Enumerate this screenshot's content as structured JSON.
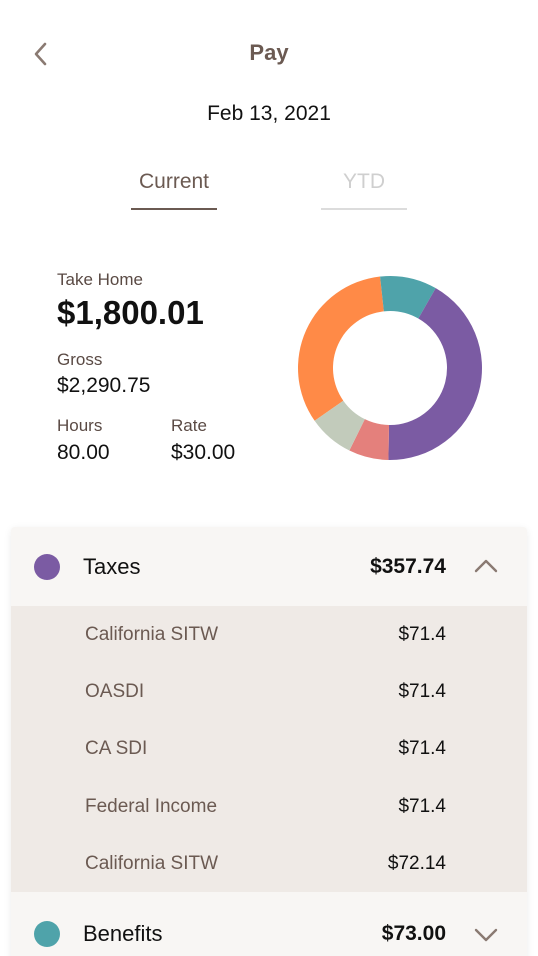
{
  "header": {
    "title": "Pay",
    "back_icon": "chevron-left-icon"
  },
  "pay_date": "Feb 13, 2021",
  "tabs": [
    {
      "label": "Current",
      "active": true
    },
    {
      "label": "YTD",
      "active": false
    }
  ],
  "summary": {
    "take_home_label": "Take Home",
    "take_home_value": "$1,800.01",
    "gross_label": "Gross",
    "gross_value": "$2,290.75",
    "hours_label": "Hours",
    "hours_value": "80.00",
    "rate_label": "Rate",
    "rate_value": "$30.00"
  },
  "chart_data": {
    "type": "pie",
    "slices": [
      {
        "color": "#ff8a47",
        "value": 33
      },
      {
        "color": "#4fa3aa",
        "value": 10
      },
      {
        "color": "#7b5ba3",
        "value": 42
      },
      {
        "color": "#e4807c",
        "value": 7
      },
      {
        "color": "#c2cbbb",
        "value": 8
      }
    ]
  },
  "breakdown": {
    "taxes": {
      "name": "Taxes",
      "amount": "$357.74",
      "color": "#7b5ba3",
      "expanded": true,
      "items": [
        {
          "name": "California SITW",
          "amount": "$71.4"
        },
        {
          "name": "OASDI",
          "amount": "$71.4"
        },
        {
          "name": "CA SDI",
          "amount": "$71.4"
        },
        {
          "name": "Federal Income",
          "amount": "$71.4"
        },
        {
          "name": "California SITW",
          "amount": "$72.14"
        }
      ]
    },
    "benefits": {
      "name": "Benefits",
      "amount": "$73.00",
      "color": "#4fa3aa",
      "expanded": false
    }
  },
  "colors": {
    "accent_brown": "#6b5a52",
    "inactive_tab": "#cfcfcf",
    "detail_bg": "#efeae6",
    "card_bg": "#f8f6f4"
  }
}
